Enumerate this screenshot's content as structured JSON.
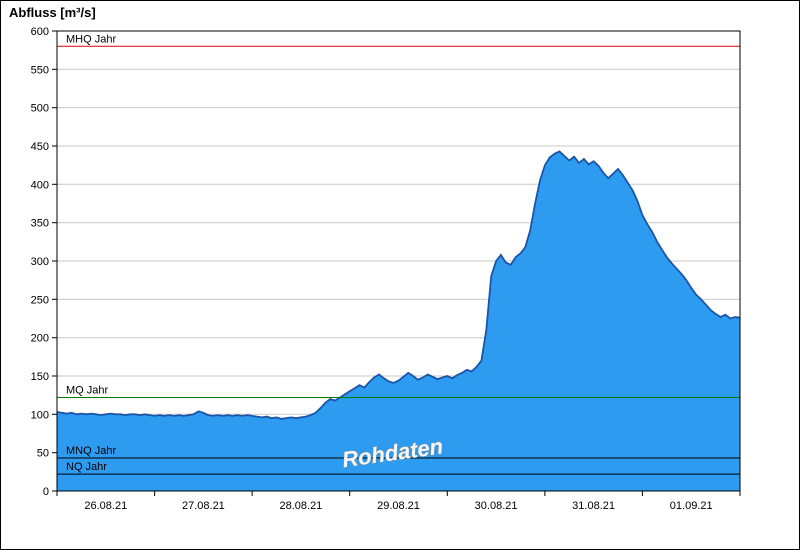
{
  "chart_data": {
    "type": "area",
    "title": "",
    "ylabel": "Abfluss [m³/s]",
    "xlabel": "",
    "watermark": "Rohdaten",
    "grid": true,
    "legend": "none",
    "xlim": [
      0,
      7
    ],
    "ylim": [
      0,
      600
    ],
    "y_ticks": [
      0,
      50,
      100,
      150,
      200,
      250,
      300,
      350,
      400,
      450,
      500,
      550,
      600
    ],
    "x_tick_labels": [
      "26.08.21",
      "27.08.21",
      "28.08.21",
      "29.08.21",
      "30.08.21",
      "31.08.21",
      "01.09.21"
    ],
    "x_tick_positions": [
      0.5,
      1.5,
      2.5,
      3.5,
      4.5,
      5.5,
      6.5
    ],
    "x_start": 0,
    "x_step": 0.05,
    "series": [
      {
        "name": "Rohdaten",
        "values": [
          103,
          102,
          101,
          102,
          100,
          101,
          100,
          101,
          100,
          99,
          100,
          101,
          100,
          100,
          99,
          100,
          100,
          99,
          100,
          99,
          98,
          99,
          98,
          99,
          98,
          99,
          98,
          99,
          100,
          104,
          102,
          99,
          98,
          99,
          98,
          99,
          98,
          99,
          98,
          99,
          98,
          97,
          96,
          97,
          95,
          96,
          94,
          95,
          96,
          95,
          96,
          97,
          99,
          102,
          108,
          115,
          120,
          118,
          122,
          126,
          130,
          134,
          138,
          135,
          142,
          148,
          152,
          147,
          143,
          141,
          144,
          149,
          154,
          150,
          145,
          148,
          152,
          149,
          146,
          148,
          150,
          147,
          151,
          154,
          158,
          156,
          162,
          170,
          210,
          280,
          300,
          308,
          298,
          295,
          305,
          310,
          318,
          340,
          375,
          405,
          425,
          435,
          440,
          443,
          437,
          431,
          436,
          428,
          433,
          426,
          430,
          424,
          415,
          408,
          414,
          420,
          412,
          402,
          392,
          378,
          360,
          348,
          338,
          325,
          315,
          305,
          297,
          290,
          283,
          275,
          265,
          256,
          250,
          243,
          236,
          231,
          227,
          230,
          225,
          227,
          226
        ]
      }
    ],
    "reference_lines": [
      {
        "id": "mhq",
        "label": "MHQ Jahr",
        "value": 580,
        "color": "#e10000"
      },
      {
        "id": "mq",
        "label": "MQ Jahr",
        "value": 122,
        "color": "#007a00"
      },
      {
        "id": "mnq",
        "label": "MNQ Jahr",
        "value": 43,
        "color": "#000000"
      },
      {
        "id": "nq",
        "label": "NQ Jahr",
        "value": 22,
        "color": "#000000"
      }
    ],
    "colors": {
      "area_fill": "#2d9bf0",
      "line": "#1a55a8",
      "grid": "#c8c8c8",
      "frame": "#000000",
      "tick": "#000000",
      "watermark_fill": "#ffffff",
      "watermark_edge": "#8a8a8a"
    }
  }
}
